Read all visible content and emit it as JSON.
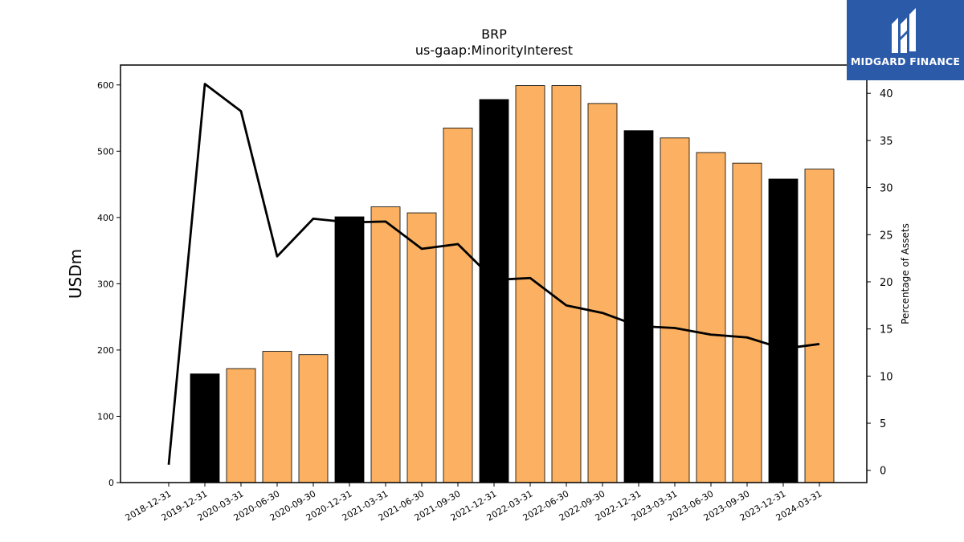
{
  "chart_data": {
    "type": "bar",
    "title": "BRP",
    "subtitle": "us-gaap:MinorityInterest",
    "ylabel": "USDm",
    "y2label": "Percentage of Assets",
    "categories": [
      "2018-12-31",
      "2019-12-31",
      "2020-03-31",
      "2020-06-30",
      "2020-09-30",
      "2020-12-31",
      "2021-03-31",
      "2021-06-30",
      "2021-09-30",
      "2021-12-31",
      "2022-03-31",
      "2022-06-30",
      "2022-09-30",
      "2022-12-31",
      "2023-03-31",
      "2023-06-30",
      "2023-09-30",
      "2023-12-31",
      "2024-03-31"
    ],
    "series": [
      {
        "type": "bar",
        "values": [
          0,
          164,
          172,
          198,
          193,
          401,
          416,
          407,
          535,
          578,
          599,
          599,
          572,
          531,
          520,
          498,
          482,
          458,
          473
        ],
        "colors": [
          "#fbb161",
          "#000000",
          "#fbb161",
          "#fbb161",
          "#fbb161",
          "#000000",
          "#fbb161",
          "#fbb161",
          "#fbb161",
          "#000000",
          "#fbb161",
          "#fbb161",
          "#fbb161",
          "#000000",
          "#fbb161",
          "#fbb161",
          "#fbb161",
          "#000000",
          "#fbb161"
        ]
      },
      {
        "type": "line",
        "axis": "right",
        "values": [
          0.6,
          41.0,
          38.1,
          22.7,
          26.7,
          26.3,
          26.4,
          23.5,
          24.0,
          20.2,
          20.4,
          17.5,
          16.7,
          15.3,
          15.1,
          14.4,
          14.1,
          12.9,
          13.4
        ],
        "color": "#000000"
      }
    ],
    "ylim": [
      0,
      630
    ],
    "yticks": [
      0,
      100,
      200,
      300,
      400,
      500,
      600
    ],
    "y2lim": [
      -1.3,
      43.0
    ],
    "y2ticks": [
      0,
      5,
      10,
      15,
      20,
      25,
      30,
      35,
      40
    ],
    "bar_colors": {
      "year_end": "#000000",
      "quarter": "#fbb161"
    },
    "grid": false,
    "legend": "none"
  },
  "logo": {
    "text": "MIDGARD FINANCE",
    "bg": "#2b5aa8"
  }
}
